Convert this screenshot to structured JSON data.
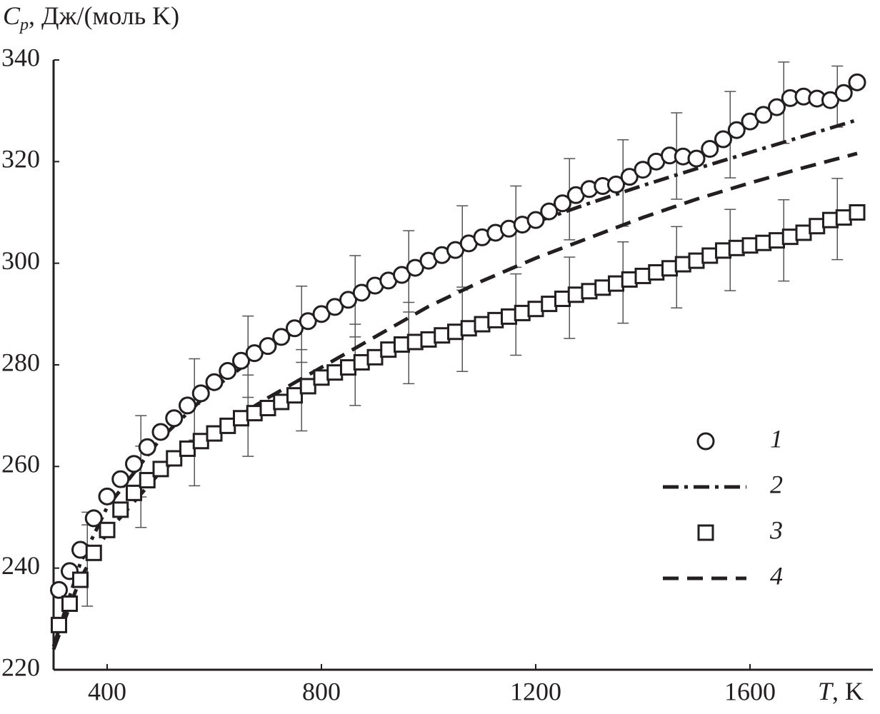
{
  "chart_data": {
    "type": "scatter",
    "y_label": {
      "symbol": "C",
      "subscript": "p",
      "unit": ", Дж/(моль K)"
    },
    "x_label": {
      "symbol": "T",
      "unit": ", K"
    },
    "xlim": [
      300,
      1830
    ],
    "ylim": [
      220,
      340
    ],
    "xticks": [
      400,
      800,
      1200,
      1600
    ],
    "yticks": [
      220,
      240,
      260,
      280,
      300,
      320,
      340
    ],
    "series": [
      {
        "name": "1",
        "color": "#231f20",
        "marker": "circle",
        "x": [
          310,
          330,
          350,
          375,
          400,
          425,
          450,
          475,
          500,
          525,
          550,
          575,
          600,
          625,
          650,
          675,
          700,
          725,
          750,
          775,
          800,
          825,
          850,
          875,
          900,
          925,
          950,
          975,
          1000,
          1025,
          1050,
          1075,
          1100,
          1125,
          1150,
          1175,
          1200,
          1225,
          1250,
          1275,
          1300,
          1325,
          1350,
          1375,
          1400,
          1425,
          1450,
          1475,
          1500,
          1525,
          1550,
          1575,
          1600,
          1625,
          1650,
          1675,
          1700,
          1725,
          1750,
          1775,
          1800
        ],
        "values": [
          235.7,
          239.4,
          243.6,
          249.8,
          254.1,
          257.5,
          260.5,
          263.8,
          266.8,
          269.5,
          272,
          274.4,
          276.6,
          278.8,
          280.8,
          282.3,
          283.7,
          285.5,
          287.2,
          288.6,
          290,
          291.4,
          292.8,
          294.2,
          295.6,
          296.6,
          297.7,
          299.1,
          300.5,
          301.6,
          302.6,
          303.9,
          305.1,
          306,
          306.8,
          307.6,
          308.5,
          310.2,
          311.8,
          313.4,
          314.6,
          315.2,
          315.5,
          317,
          318.4,
          320,
          321.2,
          321,
          320.6,
          322.5,
          324.4,
          326.2,
          327.9,
          329.2,
          330.7,
          332.5,
          332.8,
          332.4,
          332.1,
          333.5,
          335.6
        ],
        "error_bars": {
          "x": [
            363,
            463,
            563,
            663,
            763,
            863,
            963,
            1063,
            1163,
            1263,
            1363,
            1463,
            1563,
            1663,
            1763
          ],
          "y": [
            246.5,
            262,
            273.2,
            281.6,
            288,
            293.5,
            298.4,
            303.3,
            307.2,
            312.6,
            315.8,
            321.1,
            325.3,
            331.6,
            332.8
          ],
          "err": [
            4.5,
            8,
            8,
            8,
            7.5,
            8,
            8,
            8,
            8,
            8,
            8.5,
            8.5,
            8.5,
            8,
            6
          ]
        }
      },
      {
        "name": "2",
        "color": "#231f20",
        "linestyle": "dashdot",
        "x": [
          300,
          350,
          400,
          500,
          600,
          700,
          800,
          900,
          1000,
          1100,
          1200,
          1300,
          1400,
          1500,
          1600,
          1700,
          1800
        ],
        "values": [
          224.6,
          241,
          252,
          265.5,
          275.5,
          283.3,
          289.8,
          295.2,
          299.8,
          304.2,
          308.1,
          311.8,
          315.3,
          318.6,
          321.8,
          325,
          328.2
        ]
      },
      {
        "name": "3",
        "color": "#231f20",
        "marker": "square",
        "x": [
          310,
          330,
          350,
          375,
          400,
          425,
          450,
          475,
          500,
          525,
          550,
          575,
          600,
          625,
          650,
          675,
          700,
          725,
          750,
          775,
          800,
          825,
          850,
          875,
          900,
          925,
          950,
          975,
          1000,
          1025,
          1050,
          1075,
          1100,
          1125,
          1150,
          1175,
          1200,
          1225,
          1250,
          1275,
          1300,
          1325,
          1350,
          1375,
          1400,
          1425,
          1450,
          1475,
          1500,
          1525,
          1550,
          1575,
          1600,
          1625,
          1650,
          1675,
          1700,
          1725,
          1750,
          1775,
          1800
        ],
        "values": [
          228.8,
          233,
          237.7,
          243,
          247.5,
          251.5,
          254.8,
          257.3,
          259.5,
          261.6,
          263.5,
          265,
          266.5,
          268,
          269.5,
          270.5,
          271.5,
          272.7,
          274,
          275.8,
          277.5,
          278.5,
          279.5,
          280.5,
          281.5,
          283,
          284,
          284.5,
          285,
          285.8,
          286.5,
          287.2,
          288,
          288.8,
          289.5,
          290.2,
          291,
          292,
          293,
          293.8,
          294.5,
          295.2,
          296,
          296.8,
          297.5,
          298.2,
          299,
          299.8,
          300.5,
          301.5,
          302.5,
          303,
          303.5,
          304,
          304.5,
          305.2,
          306,
          307.3,
          308.5,
          309,
          310
        ],
        "error_bars": {
          "x": [
            363,
            463,
            563,
            663,
            763,
            863,
            963,
            1063,
            1163,
            1263,
            1363,
            1463,
            1563,
            1663,
            1763
          ],
          "y": [
            240.5,
            256,
            264.2,
            270,
            275,
            280,
            284.3,
            286.7,
            289.9,
            293.2,
            296.2,
            299.2,
            302.6,
            304.5,
            308.7
          ],
          "err": [
            8,
            8,
            8,
            8,
            8,
            8,
            8,
            8,
            8,
            8,
            8,
            8,
            8,
            8,
            8
          ]
        }
      },
      {
        "name": "4",
        "color": "#231f20",
        "linestyle": "dashed",
        "x": [
          300,
          350,
          400,
          500,
          600,
          700,
          800,
          900,
          1000,
          1100,
          1200,
          1300,
          1400,
          1500,
          1600,
          1700,
          1800
        ],
        "values": [
          224,
          238,
          247,
          259,
          267,
          273.5,
          279.5,
          285.5,
          291.5,
          296.5,
          301,
          305,
          309,
          312.6,
          315.8,
          318.8,
          321.6
        ]
      }
    ]
  }
}
